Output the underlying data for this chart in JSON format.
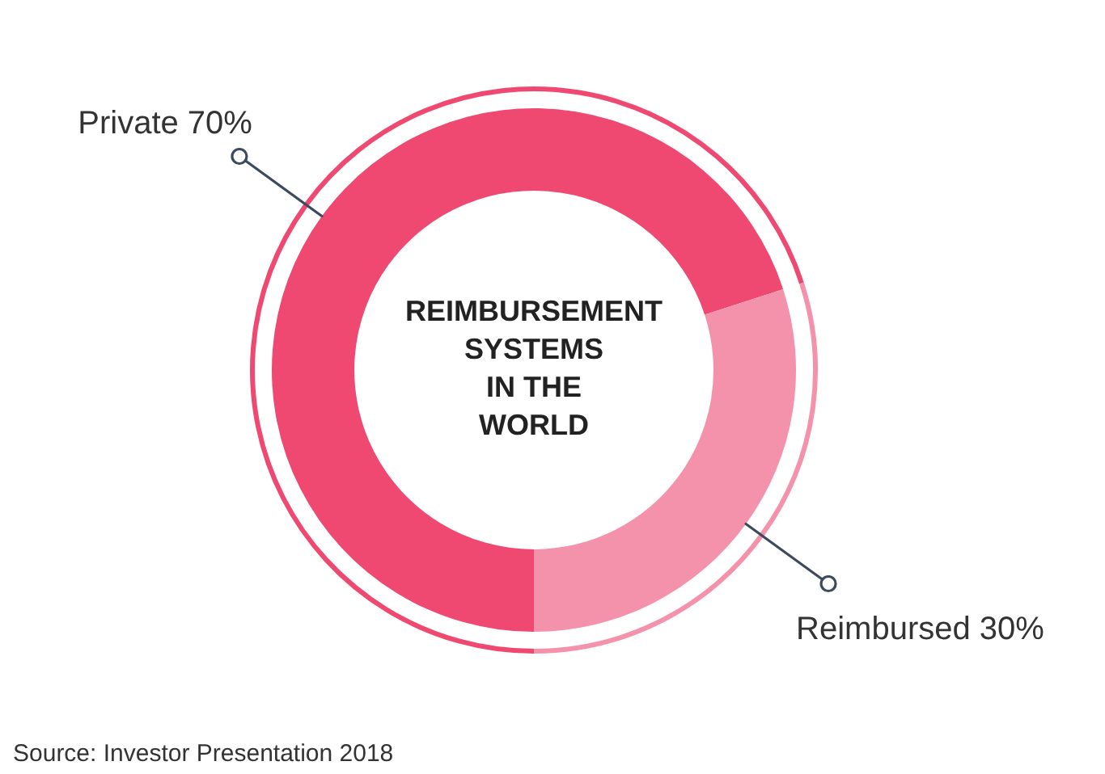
{
  "chart_data": {
    "type": "donut",
    "title": "REIMBURSEMENT\nSYSTEMS\nIN THE\nWORLD",
    "categories": [
      "Private",
      "Reimbursed"
    ],
    "values": [
      70,
      30
    ],
    "value_labels": [
      "70%",
      "30%"
    ],
    "colors": [
      "#ef4972",
      "#f592ab"
    ],
    "annotations": [
      "Source: Investor Presentation 2018"
    ]
  }
}
